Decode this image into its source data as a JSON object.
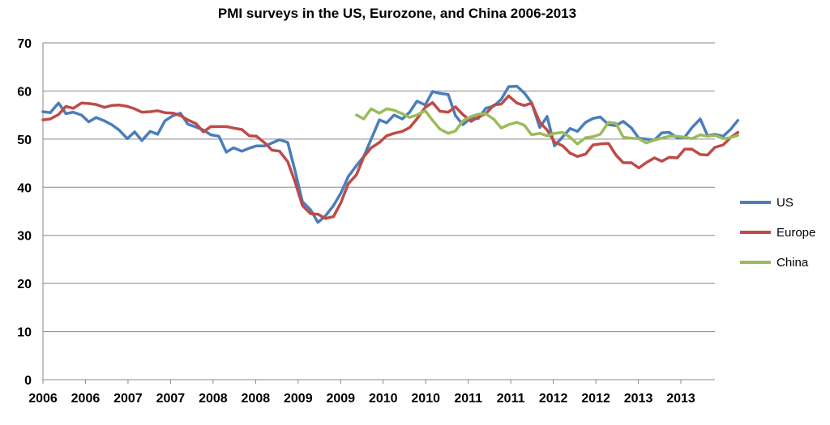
{
  "chart_data": {
    "type": "line",
    "title": "PMI surveys in the US, Eurozone, and China 2006-2013",
    "xlabel": "",
    "ylabel": "",
    "ylim": [
      0,
      70
    ],
    "yticks": [
      0,
      10,
      20,
      30,
      40,
      50,
      60,
      70
    ],
    "xlim": [
      2006.0,
      2013.33
    ],
    "x_tick_labels": [
      "2006",
      "2006",
      "2007",
      "2007",
      "2008",
      "2008",
      "2009",
      "2009",
      "2010",
      "2010",
      "2011",
      "2011",
      "2012",
      "2012",
      "2013",
      "2013"
    ],
    "grid": true,
    "legend_position": "right",
    "series": [
      {
        "name": "US",
        "color": "#4a7ebb",
        "points": [
          [
            2006.0,
            55.7
          ],
          [
            2006.08,
            55.5
          ],
          [
            2006.17,
            57.5
          ],
          [
            2006.25,
            55.3
          ],
          [
            2006.33,
            55.6
          ],
          [
            2006.42,
            55.0
          ],
          [
            2006.5,
            53.6
          ],
          [
            2006.58,
            54.5
          ],
          [
            2006.67,
            53.8
          ],
          [
            2006.75,
            53.0
          ],
          [
            2006.83,
            51.9
          ],
          [
            2006.92,
            50.1
          ],
          [
            2007.0,
            51.5
          ],
          [
            2007.08,
            49.7
          ],
          [
            2007.17,
            51.6
          ],
          [
            2007.25,
            51.0
          ],
          [
            2007.33,
            53.8
          ],
          [
            2007.42,
            54.9
          ],
          [
            2007.5,
            55.4
          ],
          [
            2007.58,
            53.1
          ],
          [
            2007.67,
            52.5
          ],
          [
            2007.75,
            51.9
          ],
          [
            2007.83,
            50.9
          ],
          [
            2007.92,
            50.6
          ],
          [
            2008.0,
            47.3
          ],
          [
            2008.08,
            48.2
          ],
          [
            2008.17,
            47.5
          ],
          [
            2008.25,
            48.1
          ],
          [
            2008.33,
            48.6
          ],
          [
            2008.42,
            48.6
          ],
          [
            2008.5,
            49.2
          ],
          [
            2008.58,
            49.9
          ],
          [
            2008.67,
            49.3
          ],
          [
            2008.75,
            43.4
          ],
          [
            2008.83,
            37.0
          ],
          [
            2008.92,
            35.3
          ],
          [
            2009.0,
            32.7
          ],
          [
            2009.08,
            34.0
          ],
          [
            2009.17,
            36.2
          ],
          [
            2009.25,
            38.8
          ],
          [
            2009.33,
            42.2
          ],
          [
            2009.42,
            44.5
          ],
          [
            2009.5,
            46.4
          ],
          [
            2009.58,
            50.0
          ],
          [
            2009.67,
            54.0
          ],
          [
            2009.75,
            53.4
          ],
          [
            2009.83,
            55.0
          ],
          [
            2009.92,
            54.2
          ],
          [
            2010.0,
            55.6
          ],
          [
            2010.08,
            57.9
          ],
          [
            2010.17,
            57.1
          ],
          [
            2010.25,
            59.9
          ],
          [
            2010.33,
            59.5
          ],
          [
            2010.42,
            59.3
          ],
          [
            2010.5,
            54.9
          ],
          [
            2010.58,
            53.0
          ],
          [
            2010.67,
            54.4
          ],
          [
            2010.75,
            54.3
          ],
          [
            2010.83,
            56.4
          ],
          [
            2010.92,
            56.9
          ],
          [
            2011.0,
            58.3
          ],
          [
            2011.08,
            60.9
          ],
          [
            2011.17,
            61.0
          ],
          [
            2011.25,
            59.6
          ],
          [
            2011.33,
            57.6
          ],
          [
            2011.42,
            52.4
          ],
          [
            2011.5,
            54.7
          ],
          [
            2011.58,
            48.6
          ],
          [
            2011.67,
            50.5
          ],
          [
            2011.75,
            52.2
          ],
          [
            2011.83,
            51.6
          ],
          [
            2011.92,
            53.5
          ],
          [
            2012.0,
            54.3
          ],
          [
            2012.08,
            54.6
          ],
          [
            2012.17,
            53.0
          ],
          [
            2012.25,
            52.8
          ],
          [
            2012.33,
            53.7
          ],
          [
            2012.42,
            52.3
          ],
          [
            2012.5,
            50.2
          ],
          [
            2012.58,
            50.0
          ],
          [
            2012.67,
            49.8
          ],
          [
            2012.75,
            51.3
          ],
          [
            2012.83,
            51.4
          ],
          [
            2012.92,
            50.3
          ],
          [
            2013.0,
            50.4
          ],
          [
            2013.08,
            52.4
          ],
          [
            2013.17,
            54.2
          ],
          [
            2013.25,
            50.7
          ],
          [
            2013.33,
            51.0
          ],
          [
            2013.42,
            50.6
          ],
          [
            2013.5,
            52.0
          ],
          [
            2013.58,
            53.9
          ]
        ]
      },
      {
        "name": "Europe",
        "color": "#be4b48",
        "points": [
          [
            2006.0,
            54.0
          ],
          [
            2006.08,
            54.2
          ],
          [
            2006.17,
            55.1
          ],
          [
            2006.25,
            56.8
          ],
          [
            2006.33,
            56.4
          ],
          [
            2006.42,
            57.5
          ],
          [
            2006.5,
            57.4
          ],
          [
            2006.58,
            57.2
          ],
          [
            2006.67,
            56.6
          ],
          [
            2006.75,
            57.0
          ],
          [
            2006.83,
            57.1
          ],
          [
            2006.92,
            56.8
          ],
          [
            2007.0,
            56.3
          ],
          [
            2007.08,
            55.6
          ],
          [
            2007.17,
            55.7
          ],
          [
            2007.25,
            55.9
          ],
          [
            2007.33,
            55.5
          ],
          [
            2007.42,
            55.4
          ],
          [
            2007.5,
            54.9
          ],
          [
            2007.58,
            54.0
          ],
          [
            2007.67,
            53.2
          ],
          [
            2007.75,
            51.5
          ],
          [
            2007.83,
            52.6
          ],
          [
            2007.92,
            52.6
          ],
          [
            2008.0,
            52.6
          ],
          [
            2008.08,
            52.3
          ],
          [
            2008.17,
            52.0
          ],
          [
            2008.25,
            50.7
          ],
          [
            2008.33,
            50.6
          ],
          [
            2008.42,
            49.2
          ],
          [
            2008.5,
            47.7
          ],
          [
            2008.58,
            47.5
          ],
          [
            2008.67,
            45.3
          ],
          [
            2008.75,
            41.1
          ],
          [
            2008.83,
            36.2
          ],
          [
            2008.92,
            34.5
          ],
          [
            2009.0,
            34.4
          ],
          [
            2009.08,
            33.5
          ],
          [
            2009.17,
            33.9
          ],
          [
            2009.25,
            36.8
          ],
          [
            2009.33,
            40.7
          ],
          [
            2009.42,
            42.6
          ],
          [
            2009.5,
            46.3
          ],
          [
            2009.58,
            48.2
          ],
          [
            2009.67,
            49.3
          ],
          [
            2009.75,
            50.7
          ],
          [
            2009.83,
            51.2
          ],
          [
            2009.92,
            51.6
          ],
          [
            2010.0,
            52.4
          ],
          [
            2010.08,
            54.2
          ],
          [
            2010.17,
            56.6
          ],
          [
            2010.25,
            57.6
          ],
          [
            2010.33,
            55.8
          ],
          [
            2010.42,
            55.6
          ],
          [
            2010.5,
            56.7
          ],
          [
            2010.58,
            55.1
          ],
          [
            2010.67,
            53.7
          ],
          [
            2010.75,
            54.6
          ],
          [
            2010.83,
            55.3
          ],
          [
            2010.92,
            57.1
          ],
          [
            2011.0,
            57.3
          ],
          [
            2011.08,
            59.0
          ],
          [
            2011.17,
            57.5
          ],
          [
            2011.25,
            57.0
          ],
          [
            2011.33,
            57.5
          ],
          [
            2011.42,
            53.5
          ],
          [
            2011.5,
            51.9
          ],
          [
            2011.58,
            49.4
          ],
          [
            2011.67,
            48.6
          ],
          [
            2011.75,
            47.1
          ],
          [
            2011.83,
            46.4
          ],
          [
            2011.92,
            46.9
          ],
          [
            2012.0,
            48.8
          ],
          [
            2012.08,
            49.0
          ],
          [
            2012.17,
            49.1
          ],
          [
            2012.25,
            46.7
          ],
          [
            2012.33,
            45.1
          ],
          [
            2012.42,
            45.1
          ],
          [
            2012.5,
            44.0
          ],
          [
            2012.58,
            45.1
          ],
          [
            2012.67,
            46.1
          ],
          [
            2012.75,
            45.4
          ],
          [
            2012.83,
            46.2
          ],
          [
            2012.92,
            46.1
          ],
          [
            2013.0,
            47.9
          ],
          [
            2013.08,
            47.9
          ],
          [
            2013.17,
            46.8
          ],
          [
            2013.25,
            46.7
          ],
          [
            2013.33,
            48.3
          ],
          [
            2013.42,
            48.8
          ],
          [
            2013.5,
            50.3
          ],
          [
            2013.58,
            51.4
          ]
        ]
      },
      {
        "name": "China",
        "color": "#9bbb59",
        "points": [
          [
            2009.42,
            55.0
          ],
          [
            2009.5,
            54.2
          ],
          [
            2009.58,
            56.3
          ],
          [
            2009.67,
            55.4
          ],
          [
            2009.75,
            56.3
          ],
          [
            2009.83,
            56.0
          ],
          [
            2009.92,
            55.3
          ],
          [
            2010.0,
            54.5
          ],
          [
            2010.08,
            55.0
          ],
          [
            2010.17,
            55.9
          ],
          [
            2010.25,
            53.9
          ],
          [
            2010.33,
            52.1
          ],
          [
            2010.42,
            51.2
          ],
          [
            2010.5,
            51.7
          ],
          [
            2010.58,
            53.8
          ],
          [
            2010.67,
            54.7
          ],
          [
            2010.75,
            55.2
          ],
          [
            2010.83,
            55.3
          ],
          [
            2010.92,
            54.1
          ],
          [
            2011.0,
            52.3
          ],
          [
            2011.08,
            53.0
          ],
          [
            2011.17,
            53.5
          ],
          [
            2011.25,
            52.9
          ],
          [
            2011.33,
            50.9
          ],
          [
            2011.42,
            51.2
          ],
          [
            2011.5,
            50.7
          ],
          [
            2011.58,
            51.2
          ],
          [
            2011.67,
            51.4
          ],
          [
            2011.75,
            50.4
          ],
          [
            2011.83,
            49.0
          ],
          [
            2011.92,
            50.3
          ],
          [
            2012.0,
            50.5
          ],
          [
            2012.08,
            51.0
          ],
          [
            2012.17,
            53.5
          ],
          [
            2012.25,
            53.3
          ],
          [
            2012.33,
            50.4
          ],
          [
            2012.42,
            50.2
          ],
          [
            2012.5,
            50.1
          ],
          [
            2012.58,
            49.2
          ],
          [
            2012.67,
            49.8
          ],
          [
            2012.75,
            50.2
          ],
          [
            2012.83,
            50.6
          ],
          [
            2012.92,
            50.6
          ],
          [
            2013.0,
            50.4
          ],
          [
            2013.08,
            50.1
          ],
          [
            2013.17,
            50.9
          ],
          [
            2013.25,
            50.6
          ],
          [
            2013.33,
            50.8
          ],
          [
            2013.42,
            50.1
          ],
          [
            2013.5,
            50.3
          ],
          [
            2013.58,
            50.8
          ]
        ]
      }
    ]
  }
}
